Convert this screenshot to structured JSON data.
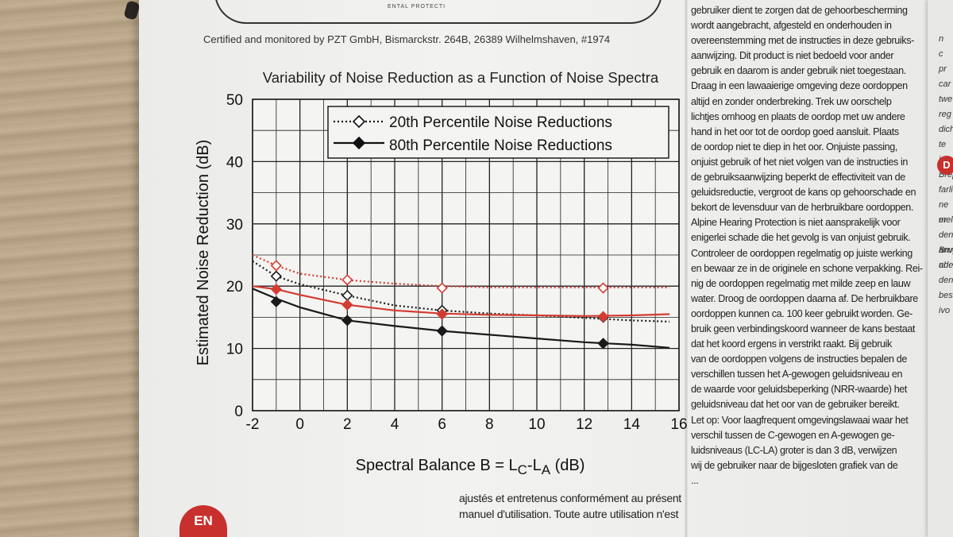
{
  "certification": "Certified and monitored by PZT GmbH, Bismarckstr. 264B, 26389 Wilhelmshaven, #1974",
  "logo_fragment": "ENTAL PROTECTI",
  "language_badge": "EN",
  "side_badge": "D",
  "colors": {
    "red_series": "#d33c32",
    "black_series": "#1a1a1a",
    "badge": "#c8302e"
  },
  "chart_data": {
    "type": "line",
    "title": "Variability of Noise Reduction as a Function of Noise Spectra",
    "ylabel": "Estimated Noise Reduction (dB)",
    "xlabel": "Spectral Balance B = LC-LA (dB)",
    "xlabel_parts": {
      "prefix": "Spectral Balance B = L",
      "sub1": "C",
      "dash": "-L",
      "sub2": "A",
      "suffix": " (dB)"
    },
    "xlim": [
      -2,
      16
    ],
    "ylim": [
      0,
      50
    ],
    "x_ticks": [
      "-2",
      "0",
      "2",
      "4",
      "6",
      "8",
      "10",
      "12",
      "14",
      "16"
    ],
    "y_ticks": [
      "0",
      "10",
      "20",
      "30",
      "40",
      "50"
    ],
    "grid": true,
    "legend_position": "top-right",
    "legend": [
      {
        "label": "20th Percentile Noise Reductions",
        "style": "dotted-open-diamond"
      },
      {
        "label": "80th Percentile Noise Reductions",
        "style": "solid-filled-diamond"
      }
    ],
    "series": [
      {
        "name": "20th Percentile Noise Reductions",
        "color": "#1a1a1a",
        "dash": "dotted",
        "marker": "open-diamond",
        "curve": [
          [
            -2,
            24
          ],
          [
            -1,
            21.6
          ],
          [
            0,
            20.3
          ],
          [
            2,
            18.5
          ],
          [
            4,
            16.9
          ],
          [
            6,
            16.1
          ],
          [
            8,
            15.6
          ],
          [
            10,
            15.3
          ],
          [
            12,
            14.9
          ],
          [
            14,
            14.5
          ],
          [
            15.6,
            14.3
          ]
        ],
        "points": [
          [
            -1,
            21.6
          ],
          [
            2,
            18.5
          ],
          [
            6,
            16.1
          ],
          [
            12.8,
            15
          ]
        ]
      },
      {
        "name": "20th Percentile Noise Reductions",
        "color": "#d33c32",
        "dash": "dotted",
        "marker": "open-diamond",
        "curve": [
          [
            -2,
            25
          ],
          [
            -1,
            23.3
          ],
          [
            0,
            22
          ],
          [
            2,
            21
          ],
          [
            4,
            20.4
          ],
          [
            6,
            20
          ],
          [
            8,
            19.8
          ],
          [
            10,
            19.8
          ],
          [
            12,
            19.8
          ],
          [
            14,
            19.8
          ],
          [
            15.6,
            19.8
          ]
        ],
        "points": [
          [
            -1,
            23.3
          ],
          [
            2,
            21
          ],
          [
            6,
            19.7
          ],
          [
            12.8,
            19.7
          ]
        ]
      },
      {
        "name": "80th Percentile Noise Reductions",
        "color": "#d33c32",
        "dash": "solid",
        "marker": "filled-diamond",
        "curve": [
          [
            -2,
            20
          ],
          [
            -1,
            19.5
          ],
          [
            0,
            18.6
          ],
          [
            2,
            17
          ],
          [
            4,
            16.1
          ],
          [
            6,
            15.6
          ],
          [
            8,
            15.4
          ],
          [
            10,
            15.3
          ],
          [
            12,
            15.2
          ],
          [
            14,
            15.3
          ],
          [
            15.6,
            15.5
          ]
        ],
        "points": [
          [
            -1,
            19.5
          ],
          [
            2,
            17
          ],
          [
            6,
            15.5
          ],
          [
            12.8,
            15.1
          ]
        ]
      },
      {
        "name": "80th Percentile Noise Reductions",
        "color": "#1a1a1a",
        "dash": "solid",
        "marker": "filled-diamond",
        "curve": [
          [
            -2,
            19.6
          ],
          [
            -1,
            18
          ],
          [
            0,
            16.6
          ],
          [
            2,
            14.5
          ],
          [
            4,
            13.6
          ],
          [
            6,
            12.8
          ],
          [
            8,
            12.2
          ],
          [
            10,
            11.6
          ],
          [
            12,
            11
          ],
          [
            14,
            10.6
          ],
          [
            15.6,
            10.1
          ]
        ],
        "points": [
          [
            -1,
            17.5
          ],
          [
            2,
            14.5
          ],
          [
            6,
            12.8
          ],
          [
            12.8,
            10.8
          ]
        ]
      }
    ]
  },
  "dutch_text": [
    "gebruiker dient te zorgen dat de gehoorbescherming",
    "wordt aangebracht, afgesteld en onderhouden in",
    "overeenstemming met de instructies in deze gebruiks-",
    "aanwijzing. Dit product is niet bedoeld voor ander",
    "gebruik en daarom is ander gebruik niet toegestaan.",
    "Draag in een lawaaierige omgeving deze oordoppen",
    "altijd en zonder onderbreking. Trek uw oorschelp",
    "lichtjes omhoog en plaats de oordop met uw andere",
    "hand in het oor tot de oordop goed aansluit. Plaats",
    "de oordop niet te diep in het oor. Onjuiste passing,",
    "onjuist gebruik of het niet volgen van de instructies in",
    "de gebruiksaanwijzing beperkt de effectiviteit van de",
    "geluidsreductie, vergroot de kans op gehoorschade en",
    "bekort de levensduur van de herbruikbare oordoppen.",
    "Alpine Hearing Protection is niet aansprakelijk voor",
    "enigerlei schade die het gevolg is van onjuist gebruik.",
    "Controleer de oordoppen regelmatig op juiste werking",
    "en bewaar ze in de originele en schone verpakking. Rei-",
    "nig de oordoppen regelmatig met milde zeep en lauw",
    "water. Droog de oordoppen daarna af. De herbruikbare",
    "oordoppen kunnen ca. 100 keer gebruikt worden. Ge-",
    "bruik geen verbindingskoord wanneer de kans bestaat",
    "dat het koord ergens in verstrikt raakt. Bij gebruik",
    "van de oordoppen volgens de instructies bepalen de",
    "verschillen tussen het A-gewogen geluidsniveau en",
    "de waarde voor geluidsbeperking (NRR-waarde) het",
    "geluidsniveau dat het oor van de gebruiker bereikt.",
    "Let op: Voor laagfrequent omgevingslawaai waar het",
    "verschil tussen de C-gewogen en A-gewogen ge-",
    "luidsniveaus (LC-LA) groter is dan 3 dB, verwijzen",
    "wij de gebruiker naar de bijgesloten grafiek van de",
    "..."
  ],
  "french_text": [
    "ajustés et entretenus conformément au présent",
    "manuel d'utilisation. Toute autre utilisation n'est"
  ],
  "edge_text": [
    "n",
    "c",
    "pr",
    "car",
    "twe",
    "reg",
    "dich",
    "te in",
    "",
    "Brepi",
    "farlig",
    "ne er",
    "melse",
    "den anve",
    "Brug al",
    "uden",
    "den",
    "bes",
    "ivo"
  ]
}
